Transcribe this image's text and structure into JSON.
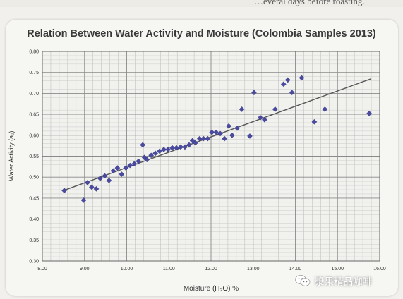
{
  "page_header_fragment": "…everal days before roasting.",
  "watermark_text": "漿果精品咖啡",
  "chart_data": {
    "type": "scatter",
    "title": "Relation Between Water Activity and Moisture (Colombia Samples 2013)",
    "xlabel": "Moisture (H₂O) %",
    "ylabel": "Water Activity (aᵤ)",
    "xlim": [
      8.0,
      16.0
    ],
    "ylim": [
      0.3,
      0.8
    ],
    "x_ticks": [
      "8.00",
      "9.00",
      "10.00",
      "11.00",
      "12.00",
      "13.00",
      "14.00",
      "15.00",
      "16.00"
    ],
    "y_ticks": [
      "0.30",
      "0.35",
      "0.40",
      "0.45",
      "0.50",
      "0.55",
      "0.60",
      "0.65",
      "0.70",
      "0.75",
      "0.80"
    ],
    "grid": true,
    "marker_color": "#4a4aa0",
    "trendline": {
      "x": [
        8.5,
        15.8
      ],
      "y": [
        0.468,
        0.735
      ],
      "color": "#555555"
    },
    "points": [
      [
        8.52,
        0.468
      ],
      [
        8.98,
        0.445
      ],
      [
        9.07,
        0.487
      ],
      [
        9.17,
        0.476
      ],
      [
        9.28,
        0.472
      ],
      [
        9.37,
        0.497
      ],
      [
        9.48,
        0.503
      ],
      [
        9.58,
        0.492
      ],
      [
        9.68,
        0.515
      ],
      [
        9.78,
        0.522
      ],
      [
        9.88,
        0.507
      ],
      [
        9.98,
        0.522
      ],
      [
        10.08,
        0.528
      ],
      [
        10.18,
        0.532
      ],
      [
        10.28,
        0.538
      ],
      [
        10.38,
        0.577
      ],
      [
        10.42,
        0.547
      ],
      [
        10.48,
        0.542
      ],
      [
        10.58,
        0.552
      ],
      [
        10.68,
        0.557
      ],
      [
        10.78,
        0.562
      ],
      [
        10.88,
        0.566
      ],
      [
        10.98,
        0.566
      ],
      [
        11.08,
        0.57
      ],
      [
        11.18,
        0.57
      ],
      [
        11.28,
        0.572
      ],
      [
        11.38,
        0.572
      ],
      [
        11.48,
        0.577
      ],
      [
        11.56,
        0.587
      ],
      [
        11.63,
        0.582
      ],
      [
        11.73,
        0.592
      ],
      [
        11.82,
        0.592
      ],
      [
        11.92,
        0.592
      ],
      [
        12.02,
        0.607
      ],
      [
        12.12,
        0.607
      ],
      [
        12.22,
        0.604
      ],
      [
        12.32,
        0.592
      ],
      [
        12.42,
        0.622
      ],
      [
        12.5,
        0.6
      ],
      [
        12.62,
        0.617
      ],
      [
        12.73,
        0.662
      ],
      [
        12.92,
        0.598
      ],
      [
        13.02,
        0.702
      ],
      [
        13.17,
        0.642
      ],
      [
        13.27,
        0.637
      ],
      [
        13.52,
        0.662
      ],
      [
        13.72,
        0.722
      ],
      [
        13.82,
        0.732
      ],
      [
        13.92,
        0.702
      ],
      [
        14.15,
        0.737
      ],
      [
        14.45,
        0.632
      ],
      [
        14.7,
        0.662
      ],
      [
        15.75,
        0.652
      ]
    ]
  }
}
